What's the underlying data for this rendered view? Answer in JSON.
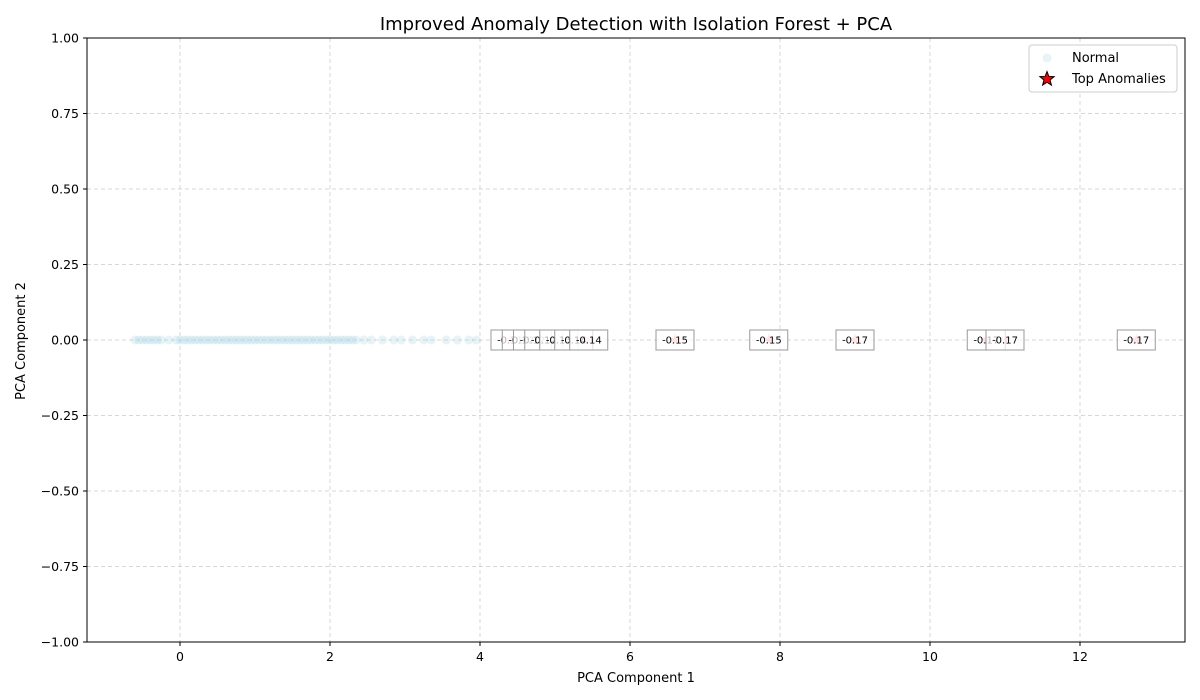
{
  "chart_data": {
    "type": "scatter",
    "title": "Improved Anomaly Detection with Isolation Forest + PCA",
    "xlabel": "PCA Component 1",
    "ylabel": "PCA Component 2",
    "xlim": [
      -1.24,
      13.4
    ],
    "ylim": [
      -1.0,
      1.0
    ],
    "xticks": [
      0,
      2,
      4,
      6,
      8,
      10,
      12
    ],
    "yticks": [
      -1.0,
      -0.75,
      -0.5,
      -0.25,
      0.0,
      0.25,
      0.5,
      0.75,
      1.0
    ],
    "ytick_labels": [
      "−1.00",
      "−0.75",
      "−0.50",
      "−0.25",
      "0.00",
      "0.25",
      "0.50",
      "0.75",
      "1.00"
    ],
    "xtick_labels": [
      "0",
      "2",
      "4",
      "6",
      "8",
      "10",
      "12"
    ],
    "grid": true,
    "legend_position": "top-right",
    "series": [
      {
        "name": "Normal",
        "color": "#add8e6",
        "marker": "circle",
        "alpha": 0.3,
        "x": [
          -0.6,
          -0.55,
          -0.5,
          -0.45,
          -0.4,
          -0.35,
          -0.3,
          -0.25,
          -0.15,
          -0.05,
          0.0,
          0.05,
          0.1,
          0.15,
          0.2,
          0.25,
          0.3,
          0.35,
          0.4,
          0.45,
          0.5,
          0.55,
          0.6,
          0.65,
          0.7,
          0.75,
          0.8,
          0.85,
          0.9,
          0.95,
          1.0,
          1.05,
          1.1,
          1.15,
          1.2,
          1.25,
          1.3,
          1.35,
          1.4,
          1.45,
          1.5,
          1.55,
          1.6,
          1.65,
          1.7,
          1.75,
          1.8,
          1.85,
          1.9,
          1.95,
          2.0,
          2.05,
          2.1,
          2.15,
          2.2,
          2.25,
          2.3,
          2.35,
          2.45,
          2.55,
          2.7,
          2.85,
          2.95,
          3.1,
          3.25,
          3.35,
          3.55,
          3.7,
          3.85,
          3.95
        ],
        "y": [
          0,
          0,
          0,
          0,
          0,
          0,
          0,
          0,
          0,
          0,
          0,
          0,
          0,
          0,
          0,
          0,
          0,
          0,
          0,
          0,
          0,
          0,
          0,
          0,
          0,
          0,
          0,
          0,
          0,
          0,
          0,
          0,
          0,
          0,
          0,
          0,
          0,
          0,
          0,
          0,
          0,
          0,
          0,
          0,
          0,
          0,
          0,
          0,
          0,
          0,
          0,
          0,
          0,
          0,
          0,
          0,
          0,
          0,
          0,
          0,
          0,
          0,
          0,
          0,
          0,
          0,
          0,
          0,
          0,
          0
        ]
      },
      {
        "name": "Top Anomalies",
        "color": "#ff0000",
        "marker": "star",
        "x": [
          4.4,
          4.55,
          4.7,
          4.85,
          5.05,
          5.25,
          5.45,
          6.6,
          7.85,
          9.0,
          10.75,
          11.0,
          12.75
        ],
        "y": [
          0,
          0,
          0,
          0,
          0,
          0,
          0,
          0,
          0,
          0,
          0,
          0,
          0
        ],
        "labels": [
          "-0.11",
          "-0.12",
          "-0.12",
          "-0.12",
          "-0.13",
          "-0.14",
          "-0.14",
          "-0.15",
          "-0.15",
          "-0.17",
          "-0.17",
          "-0.17",
          "-0.17"
        ]
      }
    ]
  }
}
